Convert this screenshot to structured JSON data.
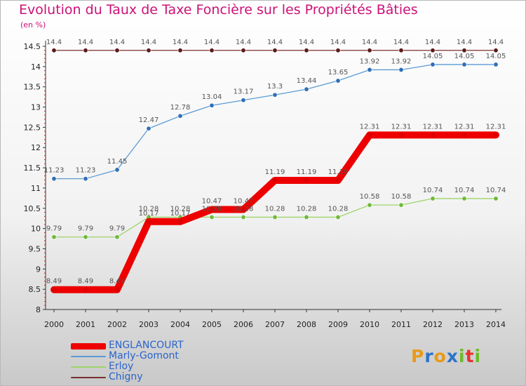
{
  "title": "Evolution du Taux de Taxe Foncière sur les Propriétés Bâties",
  "unit_label": "(en %)",
  "logo": {
    "letters": [
      "P",
      "r",
      "o",
      "x",
      "i",
      "t",
      "i"
    ],
    "colors": [
      "#e89a1a",
      "#2b73c9",
      "#e89a1a",
      "#2b73c9",
      "#6cbb2a",
      "#e3342f",
      "#6cbb2a"
    ]
  },
  "chart_data": {
    "type": "line",
    "title": "Evolution du Taux de Taxe Foncière sur les Propriétés Bâties",
    "ylabel": "(en %)",
    "xlabel": "",
    "categories": [
      "2000",
      "2001",
      "2002",
      "2003",
      "2004",
      "2005",
      "2006",
      "2007",
      "2008",
      "2009",
      "2010",
      "2011",
      "2012",
      "2013",
      "2014"
    ],
    "ylim": [
      8,
      14.5
    ],
    "yticks": [
      "8",
      "8.5",
      "9",
      "9.5",
      "10",
      "10.5",
      "11",
      "11.5",
      "12",
      "12.5",
      "13",
      "13.5",
      "14",
      "14.5"
    ],
    "series": [
      {
        "name": "Chigny",
        "color": "#7a3030",
        "marker": "#5a1a1a",
        "values": [
          14.4,
          14.4,
          14.4,
          14.4,
          14.4,
          14.4,
          14.4,
          14.4,
          14.4,
          14.4,
          14.4,
          14.4,
          14.4,
          14.4,
          14.4
        ],
        "labels": [
          "14.4",
          "14.4",
          "14.4",
          "14.4",
          "14.4",
          "14.4",
          "14.4",
          "14.4",
          "14.4",
          "14.4",
          "14.4",
          "14.4",
          "14.4",
          "14.4",
          "14.4"
        ]
      },
      {
        "name": "Marly-Gomont",
        "color": "#5b9bd5",
        "marker": "#2f6fb5",
        "values": [
          11.23,
          11.23,
          11.45,
          12.47,
          12.78,
          13.04,
          13.17,
          13.3,
          13.44,
          13.65,
          13.92,
          13.92,
          14.05,
          14.05,
          14.05
        ],
        "labels": [
          "11.23",
          "11.23",
          "11.45",
          "12.47",
          "12.78",
          "13.04",
          "13.17",
          "13.3",
          "13.44",
          "13.65",
          "13.92",
          "13.92",
          "14.05",
          "14.05",
          "14.05"
        ]
      },
      {
        "name": "Erloy",
        "color": "#9ed46a",
        "marker": "#6fb83a",
        "values": [
          9.79,
          9.79,
          9.79,
          10.28,
          10.28,
          10.28,
          10.28,
          10.28,
          10.28,
          10.28,
          10.58,
          10.58,
          10.74,
          10.74,
          10.74
        ],
        "labels": [
          "9.79",
          "9.79",
          "9.79",
          "10.28",
          "10.28",
          "10.28",
          "10.28",
          "10.28",
          "10.28",
          "10.28",
          "10.58",
          "10.58",
          "10.74",
          "10.74",
          "10.74"
        ]
      },
      {
        "name": "ENGLANCOURT",
        "color": "#ee0000",
        "marker": "#dd0000",
        "values": [
          8.49,
          8.49,
          8.49,
          10.17,
          10.17,
          10.47,
          10.47,
          11.19,
          11.19,
          11.19,
          12.31,
          12.31,
          12.31,
          12.31,
          12.31
        ],
        "labels": [
          "8.49",
          "8.49",
          "8.49",
          "10.17",
          "10.17",
          "10.47",
          "10.47",
          "11.19",
          "11.19",
          "11.19",
          "12.31",
          "12.31",
          "12.31",
          "12.31",
          "12.31"
        ]
      }
    ],
    "legend": [
      {
        "name": "ENGLANCOURT",
        "color": "#ee0000"
      },
      {
        "name": "Marly-Gomont",
        "color": "#5b9bd5"
      },
      {
        "name": "Erloy",
        "color": "#9ed46a"
      },
      {
        "name": "Chigny",
        "color": "#7a3030"
      }
    ],
    "legend_position": "bottom-left",
    "grid": false
  }
}
